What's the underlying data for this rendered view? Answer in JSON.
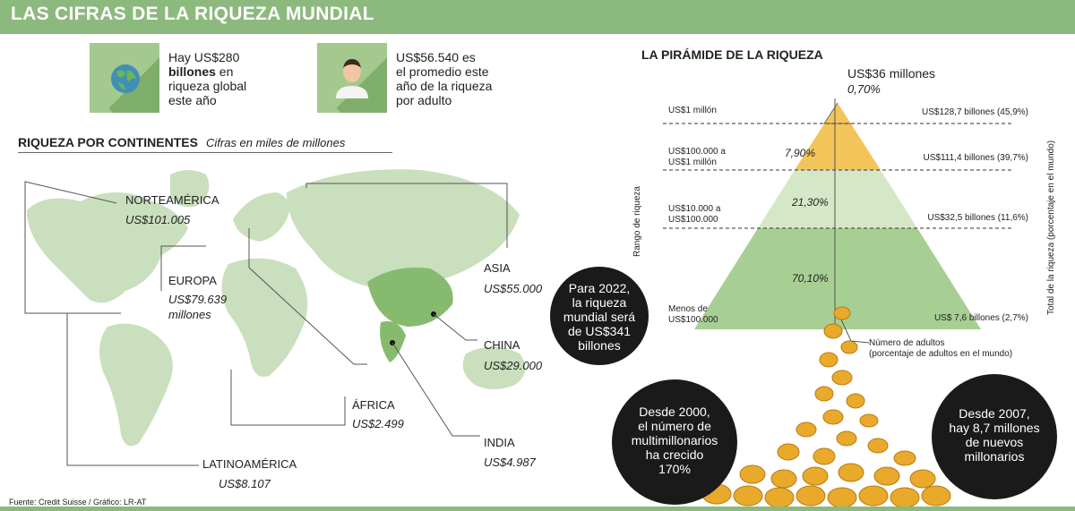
{
  "header": {
    "title": "LAS CIFRAS DE LA RIQUEZA MUNDIAL"
  },
  "stats": [
    {
      "icon": "globe-icon",
      "lines": [
        "Hay US$280",
        "billones",
        " en",
        "riqueza global",
        "este año"
      ]
    },
    {
      "icon": "person-icon",
      "lines": [
        "US$56.540",
        " es",
        "el promedio este",
        "año de la riqueza",
        "por adulto"
      ]
    }
  ],
  "continents": {
    "title": "RIQUEZA POR CONTINENTES",
    "subtitle": "Cifras en miles de millones",
    "regions": [
      {
        "name": "NORTEAMÉRICA",
        "value": "US$101.005"
      },
      {
        "name": "EUROPA",
        "value": "US$79.639",
        "extra": "millones"
      },
      {
        "name": "ASIA",
        "value": "US$55.000"
      },
      {
        "name": "CHINA",
        "value": "US$29.000"
      },
      {
        "name": "ÁFRICA",
        "value": "US$2.499"
      },
      {
        "name": "INDIA",
        "value": "US$4.987"
      },
      {
        "name": "LATINOAMÉRICA",
        "value": "US$8.107"
      }
    ]
  },
  "pyramid": {
    "title": "LA PIRÁMIDE DE LA RIQUEZA",
    "top_value": "US$36 millones",
    "top_pct": "0,70%",
    "left_axis": "Rango de riqueza",
    "right_axis": "Total de la riqueza (porcentaje en el mundo)",
    "bottom_note": [
      "Número de adultos",
      "(porcentaje de adultos en el mundo)"
    ],
    "tiers": [
      {
        "range": [
          "US$1 millón"
        ],
        "total": "US$128,7 billones (45,9%)",
        "adults_pct": ""
      },
      {
        "range": [
          "US$100.000 a",
          "US$1 millón"
        ],
        "total": "US$111,4 billones (39,7%)",
        "adults_pct": "7,90%"
      },
      {
        "range": [
          "US$10.000 a",
          "US$100.000"
        ],
        "total": "US$32,5 billones (11,6%)",
        "adults_pct": "21,30%"
      },
      {
        "range": [
          "Menos de",
          "US$100.000"
        ],
        "total": "US$ 7,6 billones (2,7%)",
        "adults_pct": "70,10%"
      }
    ],
    "colors": {
      "top": "#f2c45a",
      "middle": "#d6e7c8",
      "bottom": "#a8cf93"
    }
  },
  "bubbles": [
    {
      "lines": [
        "Para 2022,",
        "la riqueza",
        "mundial será",
        "de US$341",
        "billones"
      ]
    },
    {
      "lines": [
        "Desde 2000,",
        "el número de",
        "multimillonarios",
        "ha crecido",
        "170%"
      ]
    },
    {
      "lines": [
        "Desde 2007,",
        "hay 8,7 millones",
        "de nuevos",
        "millonarios"
      ]
    }
  ],
  "source": "Fuente: Credit Suisse / Gráfico: LR-AT"
}
